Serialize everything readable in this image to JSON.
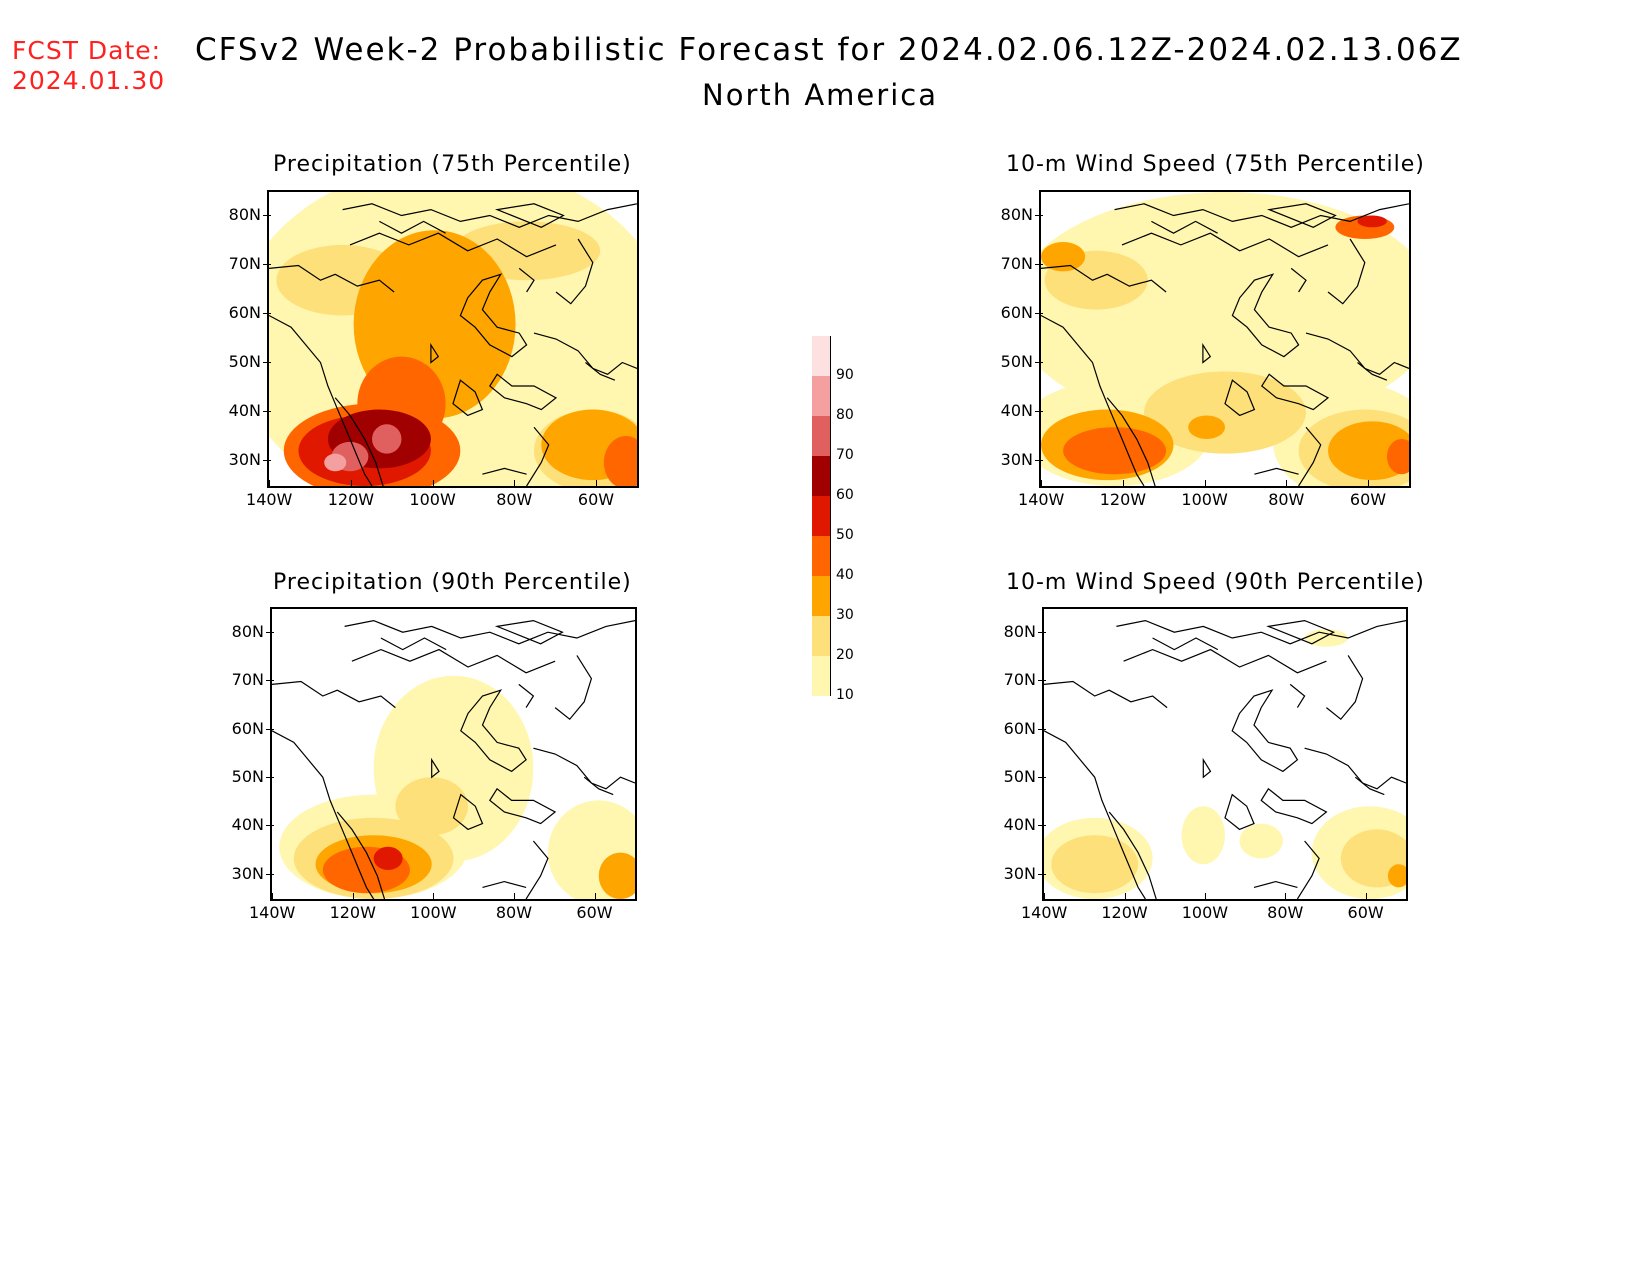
{
  "header": {
    "fcst_label": "FCST Date:",
    "fcst_date": "2024.01.30",
    "title_line1": "CFSv2 Week-2 Probabilistic Forecast for 2024.02.06.12Z-2024.02.13.06Z",
    "title_line2": "North America"
  },
  "axes": {
    "lat_labels": [
      "80N",
      "70N",
      "60N",
      "50N",
      "40N",
      "30N"
    ],
    "lon_labels": [
      "140W",
      "120W",
      "100W",
      "80W",
      "60W"
    ]
  },
  "panels": [
    {
      "id": "precip75",
      "title": "Precipitation (75th Percentile)"
    },
    {
      "id": "wind75",
      "title": "10-m Wind Speed (75th Percentile)"
    },
    {
      "id": "precip90",
      "title": "Precipitation (90th Percentile)"
    },
    {
      "id": "wind90",
      "title": "10-m Wind Speed (90th Percentile)"
    }
  ],
  "colorbar": {
    "labels": [
      "90",
      "80",
      "70",
      "60",
      "50",
      "40",
      "30",
      "20",
      "10"
    ],
    "colors": [
      "#fde0e0",
      "#f4a0a0",
      "#e06060",
      "#a00000",
      "#e01800",
      "#ff6600",
      "#ffa500",
      "#fde07a",
      "#fff6b0"
    ]
  },
  "colors": {
    "level_10": "#fff6b0",
    "level_20": "#fde07a",
    "level_30": "#ffa500",
    "level_40": "#ff6600",
    "level_50": "#e01800",
    "level_60": "#a00000",
    "level_70": "#e06060",
    "level_80": "#f4a0a0",
    "fcst_text": "#ff2020"
  }
}
